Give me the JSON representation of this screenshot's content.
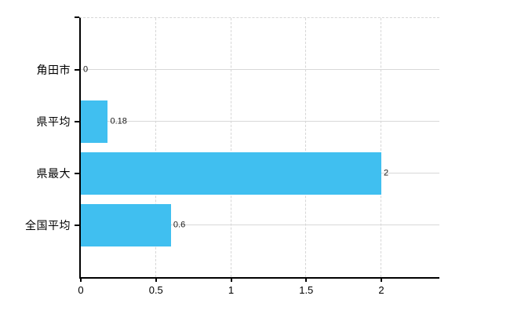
{
  "chart_data": {
    "type": "bar",
    "orientation": "horizontal",
    "categories": [
      "角田市",
      "県平均",
      "県最大",
      "全国平均"
    ],
    "values": [
      0,
      0.18,
      2,
      0.6
    ],
    "value_labels": [
      "0",
      "0.18",
      "2",
      "0.6"
    ],
    "x_ticks": [
      0,
      0.5,
      1,
      1.5,
      2
    ],
    "x_tick_labels": [
      "0",
      "0.5",
      "1",
      "1.5",
      "2"
    ],
    "xlim": [
      0,
      2.4
    ],
    "grid": true,
    "legend_position": "none",
    "colors": {
      "bar": "#40BFF0",
      "gridline": "#D8D8D8",
      "gridline_dashed": "#D6D6D6",
      "axis": "#000000",
      "text": "#000000",
      "value_text": "#1A1A1A",
      "background": "#FFFFFF"
    }
  }
}
